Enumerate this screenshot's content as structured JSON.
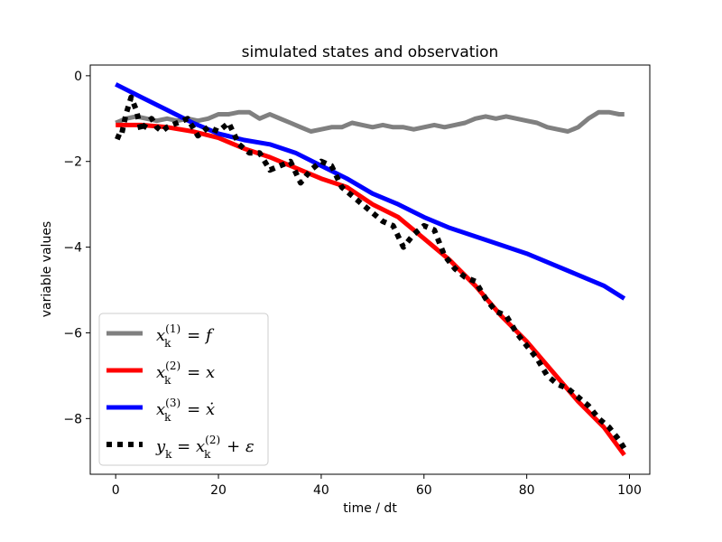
{
  "chart_data": {
    "type": "line",
    "title": "simulated states and observation",
    "xlabel": "time / dt",
    "ylabel": "variable values",
    "xlim": [
      -4.95,
      103.95
    ],
    "ylim": [
      -9.3,
      0.25
    ],
    "xticks": [
      0,
      20,
      40,
      60,
      80,
      100
    ],
    "yticks": [
      0,
      -2,
      -4,
      -6,
      -8
    ],
    "legend_position": "lower-left",
    "grid": false,
    "series": [
      {
        "name_parts": {
          "base": "x",
          "sub": "k",
          "sup": "(1)",
          "rhs": " = f"
        },
        "color": "#808080",
        "style": "solid",
        "x": [
          0,
          2,
          4,
          6,
          8,
          10,
          12,
          14,
          16,
          18,
          20,
          22,
          24,
          26,
          28,
          30,
          32,
          34,
          36,
          38,
          40,
          42,
          44,
          46,
          48,
          50,
          52,
          54,
          56,
          58,
          60,
          62,
          64,
          66,
          68,
          70,
          72,
          74,
          76,
          78,
          80,
          82,
          84,
          86,
          88,
          90,
          92,
          94,
          96,
          98,
          99
        ],
        "y": [
          -1.1,
          -1.0,
          -0.95,
          -1.0,
          -1.05,
          -1.0,
          -1.05,
          -1.0,
          -1.05,
          -1.0,
          -0.9,
          -0.9,
          -0.85,
          -0.85,
          -1.0,
          -0.9,
          -1.0,
          -1.1,
          -1.2,
          -1.3,
          -1.25,
          -1.2,
          -1.2,
          -1.1,
          -1.15,
          -1.2,
          -1.15,
          -1.2,
          -1.2,
          -1.25,
          -1.2,
          -1.15,
          -1.2,
          -1.15,
          -1.1,
          -1.0,
          -0.95,
          -1.0,
          -0.95,
          -1.0,
          -1.05,
          -1.1,
          -1.2,
          -1.25,
          -1.3,
          -1.2,
          -1.0,
          -0.85,
          -0.85,
          -0.9,
          -0.9
        ]
      },
      {
        "name_parts": {
          "base": "x",
          "sub": "k",
          "sup": "(2)",
          "rhs": " = x"
        },
        "color": "#ff0000",
        "style": "solid",
        "x": [
          0,
          5,
          10,
          15,
          20,
          25,
          30,
          35,
          40,
          45,
          50,
          55,
          60,
          65,
          70,
          75,
          80,
          85,
          90,
          95,
          99
        ],
        "y": [
          -1.15,
          -1.15,
          -1.2,
          -1.3,
          -1.45,
          -1.7,
          -1.9,
          -2.15,
          -2.4,
          -2.6,
          -3.0,
          -3.3,
          -3.8,
          -4.3,
          -4.9,
          -5.6,
          -6.2,
          -6.9,
          -7.6,
          -8.2,
          -8.85
        ]
      },
      {
        "name_parts": {
          "base": "x",
          "sub": "k",
          "sup": "(3)",
          "rhs": " = ẋ"
        },
        "color": "#0000ff",
        "style": "solid",
        "x": [
          0,
          5,
          10,
          15,
          20,
          25,
          30,
          35,
          40,
          45,
          50,
          55,
          60,
          65,
          70,
          75,
          80,
          85,
          90,
          95,
          99
        ],
        "y": [
          -0.2,
          -0.5,
          -0.8,
          -1.1,
          -1.35,
          -1.5,
          -1.6,
          -1.8,
          -2.1,
          -2.4,
          -2.75,
          -3.0,
          -3.3,
          -3.55,
          -3.75,
          -3.95,
          -4.15,
          -4.4,
          -4.65,
          -4.9,
          -5.2
        ]
      },
      {
        "name_parts": {
          "base": "y",
          "sub": "k",
          "sup": "(2)",
          "rhs_pre": " = x",
          "rhs_post": " + ε"
        },
        "color": "#000000",
        "style": "dotted",
        "x": [
          0,
          1,
          2,
          3,
          4,
          5,
          6,
          7,
          8,
          9,
          10,
          12,
          14,
          16,
          18,
          20,
          22,
          24,
          26,
          28,
          30,
          32,
          34,
          36,
          38,
          40,
          42,
          44,
          46,
          48,
          50,
          52,
          54,
          56,
          58,
          60,
          62,
          64,
          66,
          68,
          70,
          72,
          74,
          76,
          78,
          80,
          82,
          84,
          86,
          88,
          90,
          92,
          94,
          96,
          98,
          99
        ],
        "y": [
          -1.4,
          -1.45,
          -0.9,
          -0.5,
          -0.8,
          -1.3,
          -1.1,
          -1.0,
          -1.2,
          -1.3,
          -1.2,
          -1.1,
          -1.0,
          -1.4,
          -1.2,
          -1.3,
          -1.1,
          -1.6,
          -1.8,
          -1.8,
          -2.2,
          -2.1,
          -2.0,
          -2.5,
          -2.2,
          -2.0,
          -2.1,
          -2.6,
          -2.8,
          -3.0,
          -3.2,
          -3.4,
          -3.5,
          -4.0,
          -3.7,
          -3.5,
          -3.6,
          -4.2,
          -4.5,
          -4.7,
          -4.8,
          -5.2,
          -5.5,
          -5.6,
          -6.0,
          -6.3,
          -6.6,
          -7.0,
          -7.2,
          -7.3,
          -7.5,
          -7.7,
          -8.0,
          -8.2,
          -8.5,
          -8.7
        ]
      }
    ]
  }
}
